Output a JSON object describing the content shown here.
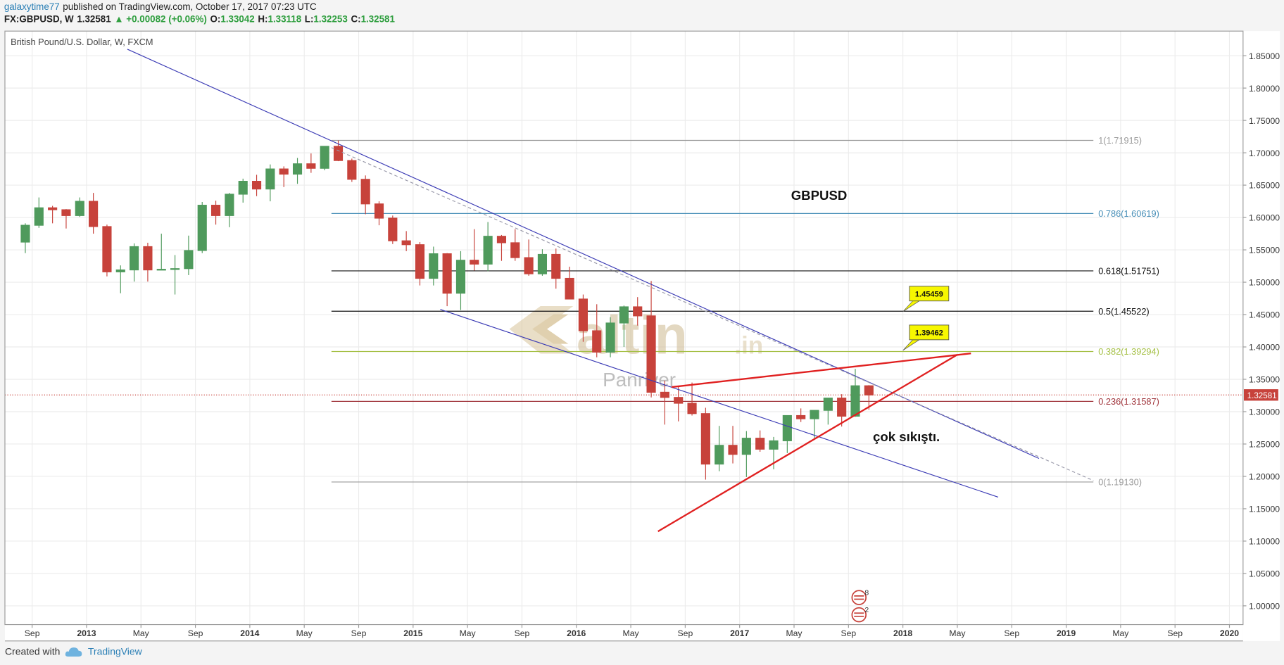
{
  "header": {
    "author": "galaxytime77",
    "published": "published on TradingView.com, October 17, 2017 07:23 UTC",
    "symbol": "FX:GBPUSD, W",
    "price": "1.32581",
    "change": "▲ +0.00082 (+0.06%)",
    "open_label": "O:",
    "open": "1.33042",
    "high_label": "H:",
    "high": "1.33118",
    "low_label": "L:",
    "low": "1.32253",
    "close_label": "C:",
    "close": "1.32581"
  },
  "footer": {
    "created": "Created with",
    "brand": "TradingView"
  },
  "chart_data": {
    "type": "candlestick",
    "legend": "British Pound/U.S. Dollar, W, FXCM",
    "up_color": "#4f9a5c",
    "down_color": "#c7423b",
    "x": [
      "2012-08",
      "2012-09",
      "2012-10",
      "2012-11",
      "2012-12",
      "2013-01",
      "2013-02",
      "2013-03",
      "2013-04",
      "2013-05",
      "2013-06",
      "2013-07",
      "2013-08",
      "2013-09",
      "2013-10",
      "2013-11",
      "2013-12",
      "2014-01",
      "2014-02",
      "2014-03",
      "2014-04",
      "2014-05",
      "2014-06",
      "2014-07",
      "2014-08",
      "2014-09",
      "2014-10",
      "2014-11",
      "2014-12",
      "2015-01",
      "2015-02",
      "2015-03",
      "2015-04",
      "2015-05",
      "2015-06",
      "2015-07",
      "2015-08",
      "2015-09",
      "2015-10",
      "2015-11",
      "2015-12",
      "2016-01",
      "2016-02",
      "2016-03",
      "2016-04",
      "2016-05",
      "2016-06",
      "2016-07",
      "2016-08",
      "2016-09",
      "2016-10",
      "2016-11",
      "2016-12",
      "2017-01",
      "2017-02",
      "2017-03",
      "2017-04",
      "2017-05",
      "2017-06",
      "2017-07",
      "2017-08",
      "2017-09",
      "2017-10"
    ],
    "open": [
      1.562,
      1.588,
      1.615,
      1.612,
      1.603,
      1.625,
      1.586,
      1.516,
      1.519,
      1.555,
      1.519,
      1.52,
      1.521,
      1.549,
      1.619,
      1.603,
      1.636,
      1.656,
      1.644,
      1.675,
      1.667,
      1.683,
      1.676,
      1.71,
      1.688,
      1.659,
      1.621,
      1.599,
      1.564,
      1.558,
      1.506,
      1.544,
      1.483,
      1.534,
      1.528,
      1.571,
      1.561,
      1.538,
      1.513,
      1.543,
      1.506,
      1.474,
      1.425,
      1.392,
      1.437,
      1.462,
      1.448,
      1.33,
      1.322,
      1.313,
      1.297,
      1.219,
      1.248,
      1.234,
      1.259,
      1.242,
      1.255,
      1.294,
      1.289,
      1.302,
      1.321,
      1.293,
      1.34
    ],
    "high": [
      1.591,
      1.631,
      1.618,
      1.613,
      1.631,
      1.638,
      1.589,
      1.526,
      1.56,
      1.561,
      1.575,
      1.542,
      1.572,
      1.624,
      1.626,
      1.638,
      1.66,
      1.666,
      1.682,
      1.679,
      1.692,
      1.699,
      1.71,
      1.719,
      1.691,
      1.665,
      1.625,
      1.603,
      1.579,
      1.562,
      1.555,
      1.545,
      1.548,
      1.582,
      1.593,
      1.573,
      1.582,
      1.566,
      1.551,
      1.552,
      1.524,
      1.481,
      1.466,
      1.446,
      1.464,
      1.477,
      1.502,
      1.348,
      1.34,
      1.345,
      1.306,
      1.278,
      1.278,
      1.27,
      1.271,
      1.261,
      1.29,
      1.305,
      1.298,
      1.321,
      1.327,
      1.366,
      1.341
    ],
    "low": [
      1.545,
      1.584,
      1.591,
      1.583,
      1.601,
      1.575,
      1.509,
      1.483,
      1.501,
      1.501,
      1.519,
      1.481,
      1.511,
      1.545,
      1.589,
      1.585,
      1.623,
      1.633,
      1.625,
      1.647,
      1.652,
      1.669,
      1.673,
      1.687,
      1.655,
      1.605,
      1.588,
      1.559,
      1.548,
      1.495,
      1.495,
      1.463,
      1.457,
      1.518,
      1.517,
      1.533,
      1.533,
      1.51,
      1.51,
      1.49,
      1.474,
      1.408,
      1.384,
      1.384,
      1.4,
      1.433,
      1.322,
      1.28,
      1.285,
      1.294,
      1.195,
      1.208,
      1.22,
      1.199,
      1.238,
      1.211,
      1.236,
      1.284,
      1.259,
      1.28,
      1.277,
      1.292,
      1.303
    ],
    "close": [
      1.588,
      1.615,
      1.612,
      1.603,
      1.625,
      1.586,
      1.516,
      1.519,
      1.555,
      1.519,
      1.52,
      1.521,
      1.549,
      1.619,
      1.603,
      1.636,
      1.656,
      1.644,
      1.675,
      1.667,
      1.683,
      1.676,
      1.71,
      1.688,
      1.659,
      1.621,
      1.599,
      1.564,
      1.558,
      1.506,
      1.544,
      1.483,
      1.534,
      1.528,
      1.571,
      1.561,
      1.538,
      1.513,
      1.543,
      1.506,
      1.474,
      1.425,
      1.392,
      1.437,
      1.462,
      1.448,
      1.33,
      1.322,
      1.313,
      1.297,
      1.219,
      1.248,
      1.234,
      1.259,
      1.242,
      1.255,
      1.294,
      1.289,
      1.302,
      1.321,
      1.293,
      1.34,
      1.32581
    ],
    "xlim": [
      "2012-07",
      "2020-02"
    ],
    "ylim": [
      0.971,
      1.888
    ],
    "xticks": [
      {
        "value": "2012-09",
        "label": "Sep"
      },
      {
        "value": "2013-01",
        "label": "2013"
      },
      {
        "value": "2013-05",
        "label": "May"
      },
      {
        "value": "2013-09",
        "label": "Sep"
      },
      {
        "value": "2014-01",
        "label": "2014"
      },
      {
        "value": "2014-05",
        "label": "May"
      },
      {
        "value": "2014-09",
        "label": "Sep"
      },
      {
        "value": "2015-01",
        "label": "2015"
      },
      {
        "value": "2015-05",
        "label": "May"
      },
      {
        "value": "2015-09",
        "label": "Sep"
      },
      {
        "value": "2016-01",
        "label": "2016"
      },
      {
        "value": "2016-05",
        "label": "May"
      },
      {
        "value": "2016-09",
        "label": "Sep"
      },
      {
        "value": "2017-01",
        "label": "2017"
      },
      {
        "value": "2017-05",
        "label": "May"
      },
      {
        "value": "2017-09",
        "label": "Sep"
      },
      {
        "value": "2018-01",
        "label": "2018"
      },
      {
        "value": "2018-05",
        "label": "May"
      },
      {
        "value": "2018-09",
        "label": "Sep"
      },
      {
        "value": "2019-01",
        "label": "2019"
      },
      {
        "value": "2019-05",
        "label": "May"
      },
      {
        "value": "2019-09",
        "label": "Sep"
      },
      {
        "value": "2020-01",
        "label": "2020"
      }
    ],
    "yticks": [
      {
        "value": 1.0,
        "label": "1.00000"
      },
      {
        "value": 1.05,
        "label": "1.05000"
      },
      {
        "value": 1.1,
        "label": "1.10000"
      },
      {
        "value": 1.15,
        "label": "1.15000"
      },
      {
        "value": 1.2,
        "label": "1.20000"
      },
      {
        "value": 1.25,
        "label": "1.25000"
      },
      {
        "value": 1.3,
        "label": "1.30000"
      },
      {
        "value": 1.35,
        "label": "1.35000"
      },
      {
        "value": 1.4,
        "label": "1.40000"
      },
      {
        "value": 1.45,
        "label": "1.45000"
      },
      {
        "value": 1.5,
        "label": "1.50000"
      },
      {
        "value": 1.55,
        "label": "1.55000"
      },
      {
        "value": 1.6,
        "label": "1.60000"
      },
      {
        "value": 1.65,
        "label": "1.65000"
      },
      {
        "value": 1.7,
        "label": "1.70000"
      },
      {
        "value": 1.75,
        "label": "1.75000"
      },
      {
        "value": 1.8,
        "label": "1.80000"
      },
      {
        "value": 1.85,
        "label": "1.85000"
      }
    ],
    "grid": true,
    "last_price": {
      "value": 1.32581,
      "label": "1.32581",
      "color": "#c7423b"
    },
    "fib_range": [
      "2014-07",
      "2019-03"
    ],
    "fib_levels": [
      {
        "value": 1.71915,
        "label": "1(1.71915)",
        "color": "#9a9a9a"
      },
      {
        "value": 1.60619,
        "label": "0.786(1.60619)",
        "color": "#4a90b8"
      },
      {
        "value": 1.51751,
        "label": "0.618(1.51751)",
        "color": "#111111"
      },
      {
        "value": 1.45522,
        "label": "0.5(1.45522)",
        "color": "#111111"
      },
      {
        "value": 1.39294,
        "label": "0.382(1.39294)",
        "color": "#a5c046"
      },
      {
        "value": 1.31587,
        "label": "0.236(1.31587)",
        "color": "#a0343b"
      },
      {
        "value": 1.1913,
        "label": "0(1.19130)",
        "color": "#9a9a9a"
      }
    ],
    "trendlines": [
      {
        "x": [
          "2013-04",
          "2018-11"
        ],
        "y": [
          1.86,
          1.2277
        ],
        "color": "#3b3bb5",
        "width": 1,
        "style": "solid"
      },
      {
        "x": [
          "2014-07",
          "2019-03"
        ],
        "y": [
          1.708,
          1.1935
        ],
        "color": "#9a9aaa",
        "width": 1,
        "style": "dashed"
      },
      {
        "x": [
          "2015-03",
          "2018-08"
        ],
        "y": [
          1.458,
          1.168
        ],
        "color": "#3b3bb5",
        "width": 1,
        "style": "solid"
      },
      {
        "x": [
          "2016-08",
          "2018-06"
        ],
        "y": [
          1.338,
          1.39
        ],
        "color": "#e02020",
        "width": 2,
        "style": "solid"
      },
      {
        "x": [
          "2016-07",
          "2018-05"
        ],
        "y": [
          1.115,
          1.388
        ],
        "color": "#e02020",
        "width": 2,
        "style": "solid"
      }
    ],
    "callouts": [
      {
        "x": "2018-01",
        "value": 1.45459,
        "label": "1.45459"
      },
      {
        "x": "2018-01",
        "value": 1.39462,
        "label": "1.39462"
      }
    ],
    "annotations": [
      "GBPUSD",
      "çok sıkıştı."
    ],
    "watermark": {
      "logo": "altin",
      "domain": ".in",
      "brand": "Panriver"
    },
    "event_badges": [
      8,
      2
    ]
  }
}
